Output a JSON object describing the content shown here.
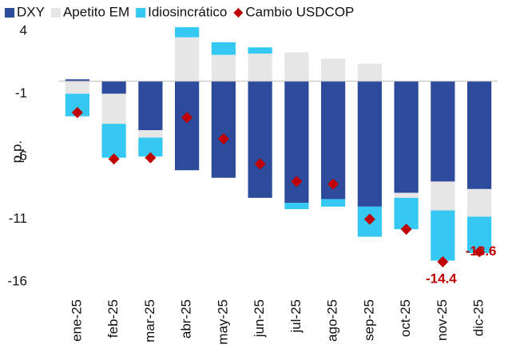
{
  "chart_data": {
    "type": "stacked_bar_with_markers",
    "y_label": "p.p.",
    "categories": [
      "ene-25",
      "feb-25",
      "mar-25",
      "abr-25",
      "may-25",
      "jun-25",
      "jul-25",
      "ago-25",
      "sep-25",
      "oct-25",
      "nov-25",
      "dic-25"
    ],
    "series": [
      {
        "name": "DXY",
        "color": "#2d4a9b",
        "kind": "bar",
        "values": [
          0.15,
          -1.0,
          -3.9,
          -7.1,
          -7.7,
          -9.3,
          -9.7,
          -9.4,
          -10.0,
          -8.9,
          -8.0,
          -8.6
        ]
      },
      {
        "name": "Apetito EM",
        "color": "#e6e6e6",
        "kind": "bar",
        "values": [
          -1.0,
          -2.4,
          -0.6,
          3.5,
          2.1,
          2.2,
          2.3,
          1.8,
          1.4,
          -0.4,
          -2.3,
          -2.2
        ]
      },
      {
        "name": "Idiosincrático",
        "color": "#35c8f2",
        "kind": "bar",
        "values": [
          -1.8,
          -2.7,
          -1.5,
          0.8,
          1.0,
          0.5,
          -0.5,
          -0.6,
          -2.4,
          -2.5,
          -4.0,
          -2.9
        ]
      },
      {
        "name": "Cambio USDCOP",
        "color": "#c00000",
        "kind": "marker",
        "values": [
          -2.5,
          -6.2,
          -6.1,
          -2.9,
          -4.6,
          -6.6,
          -8.0,
          -8.2,
          -11.0,
          -11.8,
          -14.4,
          -13.6
        ],
        "value_labels": [
          null,
          null,
          null,
          null,
          null,
          null,
          null,
          null,
          null,
          null,
          "-14.4",
          "-13.6"
        ]
      }
    ],
    "ylim": [
      -16.5,
      4.5
    ],
    "yticks": [
      4,
      -1,
      -6,
      -11,
      -16
    ],
    "grid": false,
    "legend": "top"
  }
}
